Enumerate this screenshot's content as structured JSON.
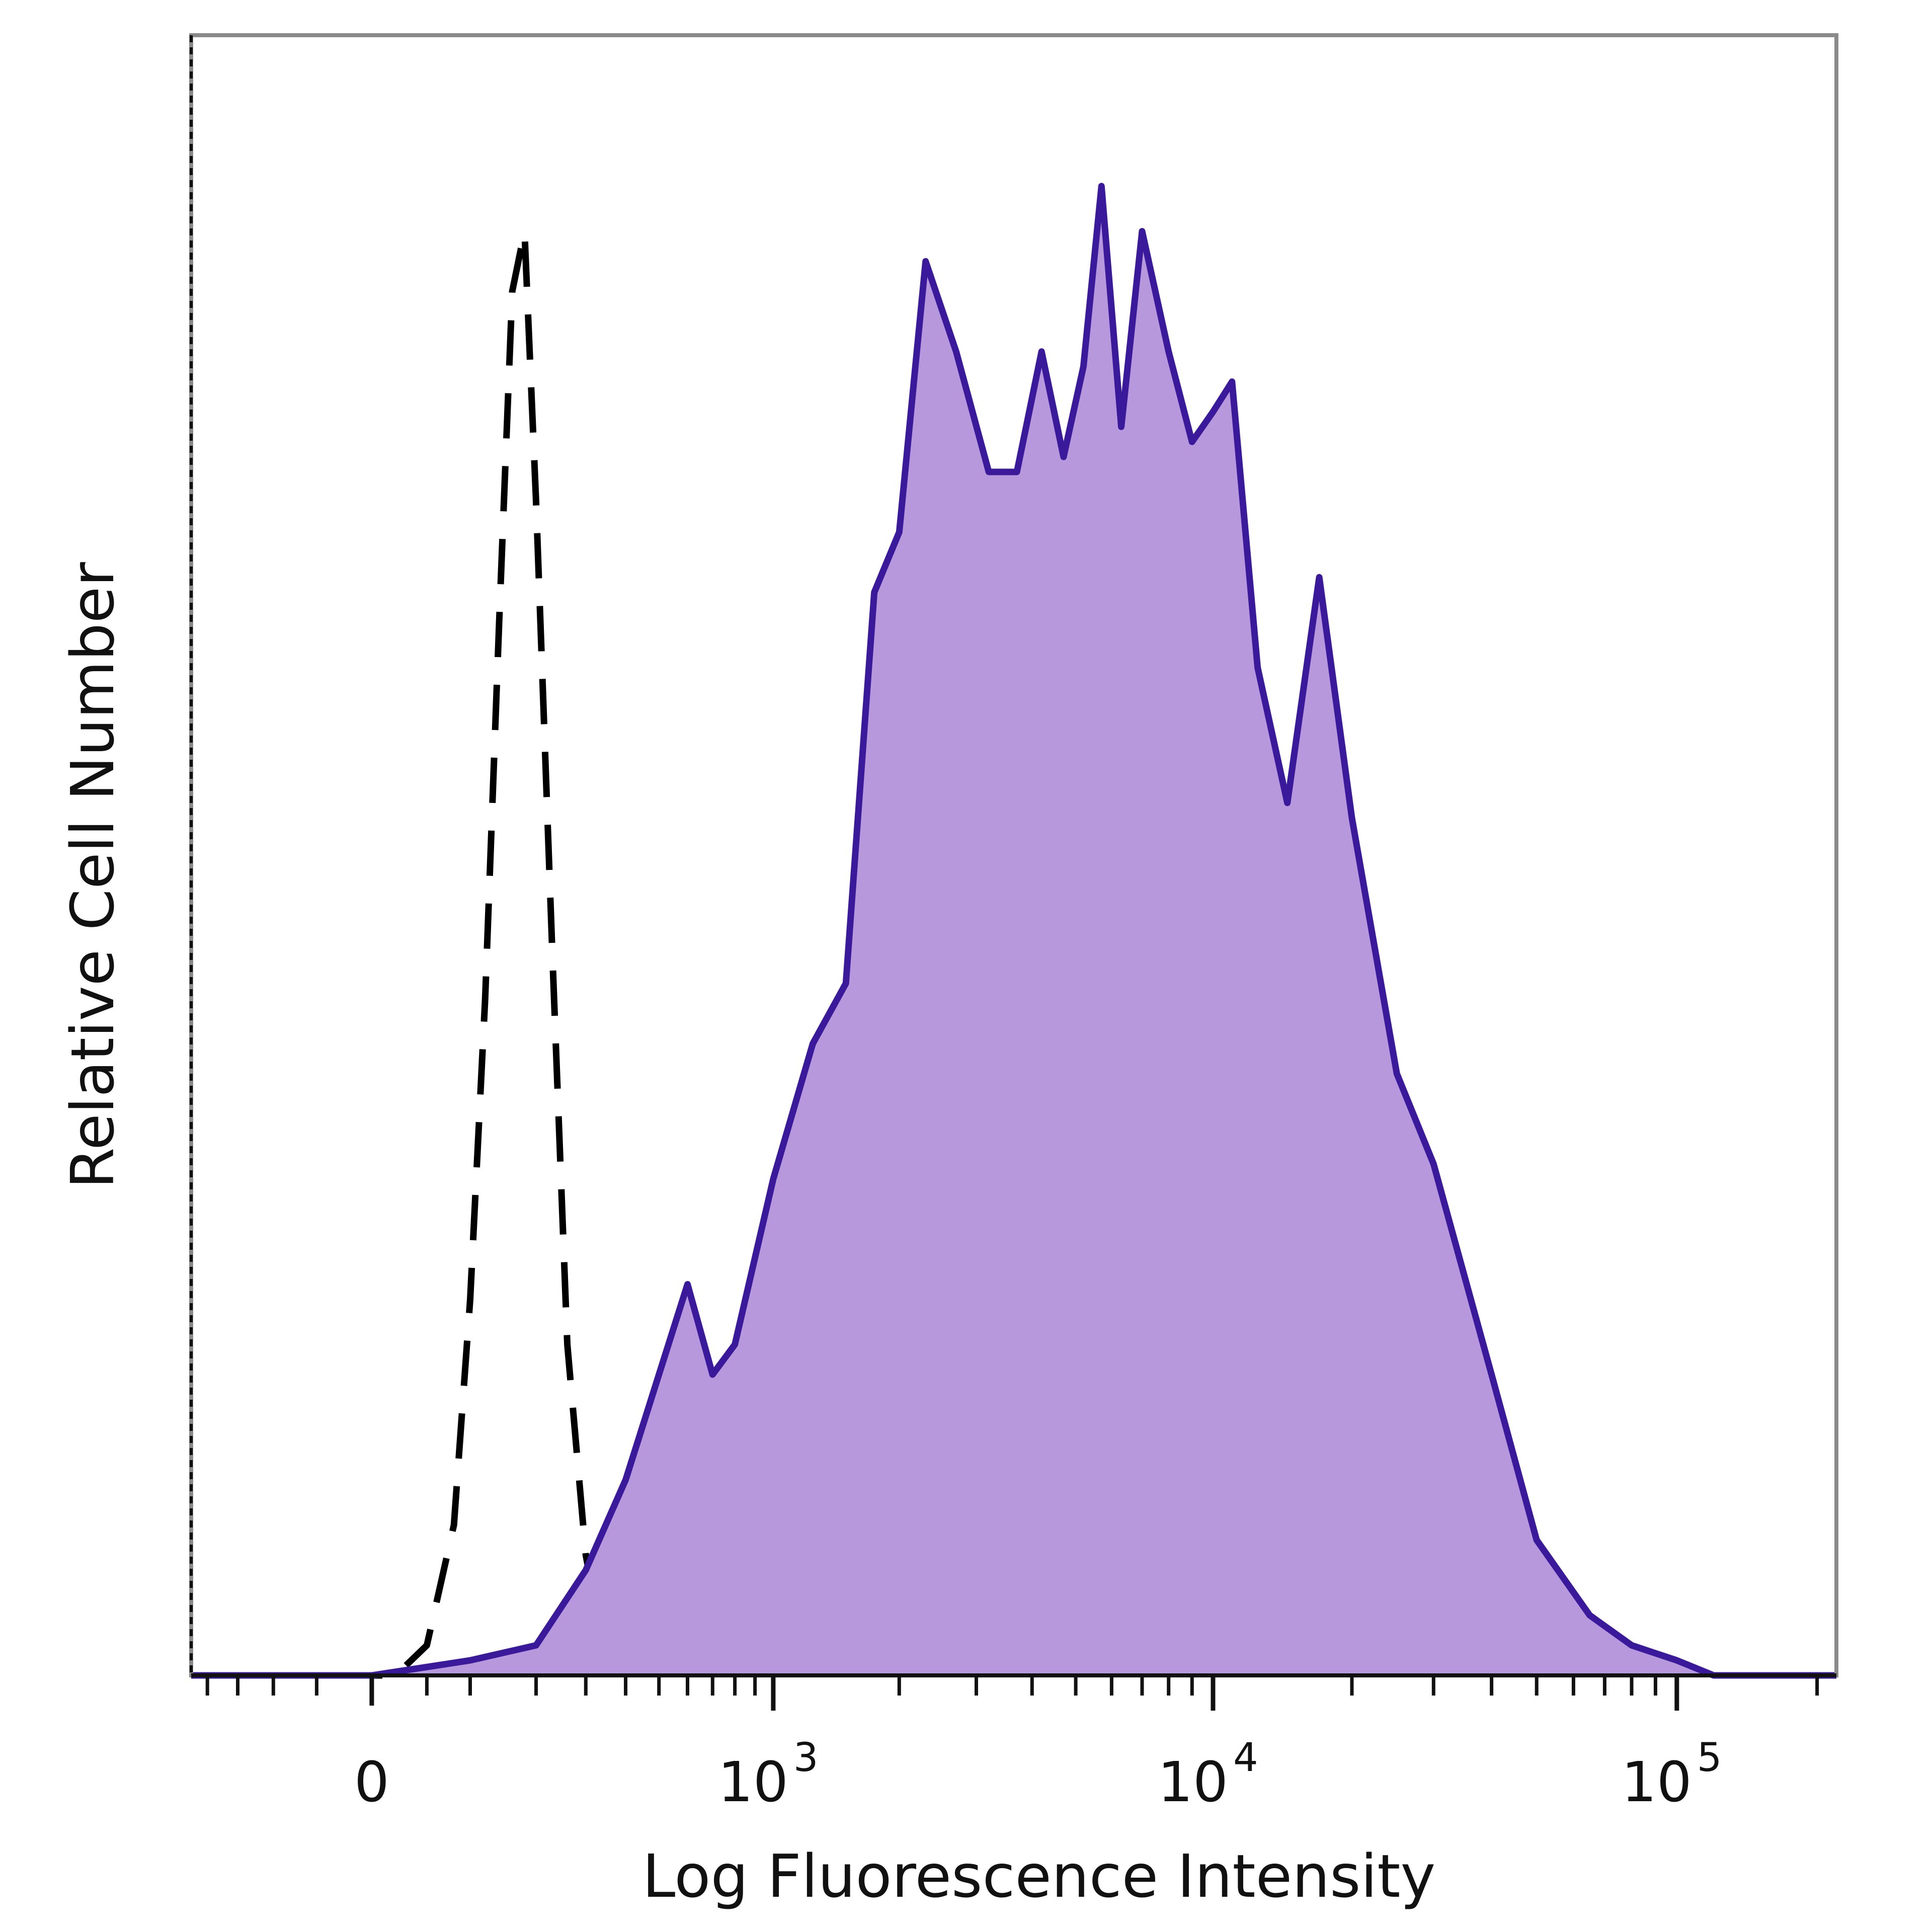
{
  "chart_data": {
    "type": "area",
    "title": "",
    "xlabel": "Log Fluorescence Intensity",
    "ylabel": "Relative Cell Number",
    "x_scale": "biexponential",
    "grid": false,
    "legend": "none",
    "xlim": [
      -230,
      220000
    ],
    "ylim": [
      0,
      1
    ],
    "x_ticks": [
      {
        "value": 0,
        "base": "0",
        "exp": ""
      },
      {
        "value": 1000,
        "base": "10",
        "exp": "3"
      },
      {
        "value": 10000,
        "base": "10",
        "exp": "4"
      },
      {
        "value": 100000,
        "base": "10",
        "exp": "5"
      }
    ],
    "series": [
      {
        "role": "control",
        "style": "dashed-outline",
        "stroke": "#000000",
        "x": [
          -230,
          -100,
          0,
          20,
          50,
          80,
          100,
          120,
          140,
          160,
          180,
          200,
          230,
          260,
          300,
          340,
          380,
          420
        ],
        "y": [
          0.0,
          0.0,
          0.0,
          0.0,
          0.02,
          0.1,
          0.25,
          0.45,
          0.7,
          0.92,
          0.96,
          0.78,
          0.48,
          0.22,
          0.08,
          0.02,
          0.004,
          0.0
        ]
      },
      {
        "role": "stained",
        "style": "filled",
        "stroke": "#3a1a9a",
        "fill": "#b898dc",
        "x": [
          -230,
          0,
          100,
          200,
          300,
          400,
          500,
          600,
          700,
          800,
          1000,
          1250,
          1500,
          1750,
          2000,
          2300,
          2700,
          3200,
          3700,
          4200,
          4700,
          5200,
          5700,
          6300,
          7000,
          8000,
          9000,
          10000,
          11000,
          12500,
          14500,
          17000,
          20000,
          25000,
          30000,
          40000,
          50000,
          65000,
          80000,
          100000,
          120000,
          150000,
          220000
        ],
        "y": [
          0.0,
          0.0,
          0.01,
          0.02,
          0.07,
          0.13,
          0.2,
          0.26,
          0.2,
          0.22,
          0.33,
          0.42,
          0.46,
          0.72,
          0.76,
          0.94,
          0.88,
          0.8,
          0.8,
          0.88,
          0.81,
          0.87,
          0.99,
          0.83,
          0.96,
          0.88,
          0.82,
          0.84,
          0.86,
          0.67,
          0.58,
          0.73,
          0.57,
          0.4,
          0.34,
          0.2,
          0.09,
          0.04,
          0.02,
          0.01,
          0.0,
          0.0,
          0.0
        ]
      }
    ]
  }
}
